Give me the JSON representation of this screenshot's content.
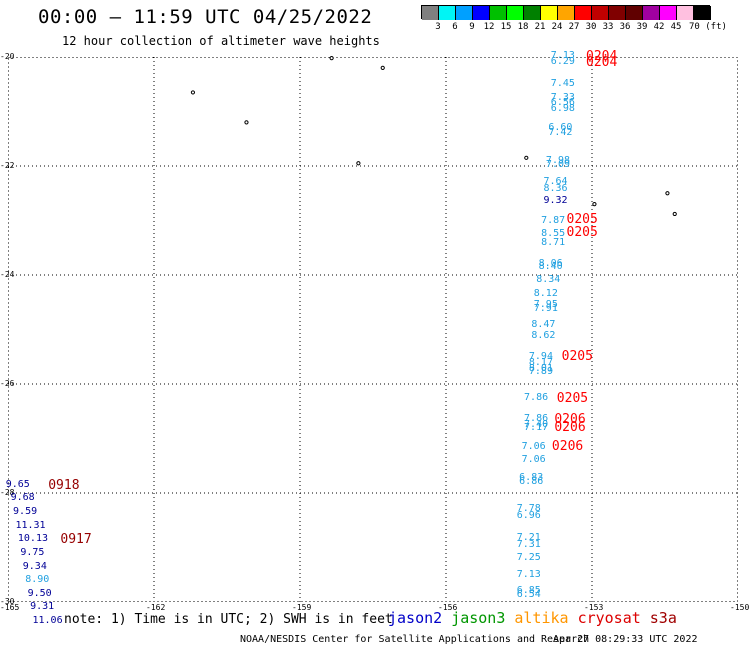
{
  "header": {
    "title": "00:00 – 11:59 UTC 04/25/2022",
    "subtitle": "12 hour collection of altimeter wave heights"
  },
  "colorbar": {
    "colors": [
      "#808080",
      "#00f5f5",
      "#00a0ff",
      "#0000ff",
      "#00c000",
      "#00ff00",
      "#008000",
      "#ffff00",
      "#ffa500",
      "#ff0000",
      "#c00000",
      "#800000",
      "#600000",
      "#a000a0",
      "#ff00ff",
      "#ffc0e0",
      "#000000"
    ],
    "labels": [
      "3",
      "6",
      "9",
      "12",
      "15",
      "18",
      "21",
      "24",
      "27",
      "30",
      "33",
      "36",
      "39",
      "42",
      "45",
      "70 (ft)"
    ]
  },
  "map": {
    "lat_ticks": [
      "-20",
      "-22",
      "-24",
      "-26",
      "-28",
      "-30"
    ],
    "lon_ticks": [
      "-165",
      "-162",
      "-159",
      "-156",
      "-153",
      "-150"
    ],
    "lon_range": [
      -165,
      -150
    ],
    "lat_range": [
      -30,
      -20
    ],
    "grid": true
  },
  "series_colors": {
    "jason2": "#0000c8",
    "jason3": "#009600",
    "altika": "#ff9600",
    "cryosat": "#dc0000",
    "s3a": "#a00000",
    "cyan": "#20a0e0",
    "navy": "#000096",
    "red": "#ff0000",
    "darkred": "#960000"
  },
  "observations": [
    {
      "lon": -153.6,
      "lat": -19.98,
      "value": "7.13",
      "color": "cyan"
    },
    {
      "lon": -153.6,
      "lat": -20.1,
      "value": "6.29",
      "color": "cyan"
    },
    {
      "lon": -153.6,
      "lat": -20.5,
      "value": "7.45",
      "color": "cyan"
    },
    {
      "lon": -153.6,
      "lat": -20.75,
      "value": "7.33",
      "color": "cyan"
    },
    {
      "lon": -153.6,
      "lat": -20.85,
      "value": "6.56",
      "color": "cyan"
    },
    {
      "lon": -153.6,
      "lat": -20.95,
      "value": "6.98",
      "color": "cyan"
    },
    {
      "lon": -153.65,
      "lat": -21.3,
      "value": "6.60",
      "color": "cyan"
    },
    {
      "lon": -153.65,
      "lat": -21.4,
      "value": "7.42",
      "color": "cyan"
    },
    {
      "lon": -153.7,
      "lat": -21.9,
      "value": "7.98",
      "color": "cyan"
    },
    {
      "lon": -153.7,
      "lat": -21.98,
      "value": "7.09",
      "color": "cyan"
    },
    {
      "lon": -153.75,
      "lat": -22.3,
      "value": "7.64",
      "color": "cyan"
    },
    {
      "lon": -153.75,
      "lat": -22.42,
      "value": "8.36",
      "color": "cyan"
    },
    {
      "lon": -153.75,
      "lat": -22.65,
      "value": "9.32",
      "color": "navy"
    },
    {
      "lon": -153.8,
      "lat": -23.0,
      "value": "7.87",
      "color": "cyan"
    },
    {
      "lon": -153.8,
      "lat": -23.25,
      "value": "8.55",
      "color": "cyan"
    },
    {
      "lon": -153.8,
      "lat": -23.42,
      "value": "8.71",
      "color": "cyan"
    },
    {
      "lon": -153.85,
      "lat": -23.8,
      "value": "8.06",
      "color": "cyan"
    },
    {
      "lon": -153.85,
      "lat": -23.85,
      "value": "8.40",
      "color": "cyan"
    },
    {
      "lon": -153.9,
      "lat": -24.1,
      "value": "8.34",
      "color": "cyan"
    },
    {
      "lon": -153.95,
      "lat": -24.35,
      "value": "8.12",
      "color": "cyan"
    },
    {
      "lon": -153.95,
      "lat": -24.55,
      "value": "7.95",
      "color": "cyan"
    },
    {
      "lon": -153.95,
      "lat": -24.62,
      "value": "7.91",
      "color": "cyan"
    },
    {
      "lon": -154.0,
      "lat": -24.92,
      "value": "8.47",
      "color": "cyan"
    },
    {
      "lon": -154.0,
      "lat": -25.12,
      "value": "8.62",
      "color": "cyan"
    },
    {
      "lon": -154.05,
      "lat": -25.5,
      "value": "7.94",
      "color": "cyan"
    },
    {
      "lon": -154.05,
      "lat": -25.62,
      "value": "8.17",
      "color": "cyan"
    },
    {
      "lon": -154.05,
      "lat": -25.72,
      "value": "8.01",
      "color": "cyan"
    },
    {
      "lon": -154.05,
      "lat": -25.78,
      "value": "7.89",
      "color": "cyan"
    },
    {
      "lon": -154.15,
      "lat": -26.25,
      "value": "7.86",
      "color": "cyan"
    },
    {
      "lon": -154.15,
      "lat": -26.65,
      "value": "7.86",
      "color": "cyan"
    },
    {
      "lon": -154.15,
      "lat": -26.75,
      "value": "7.40",
      "color": "cyan"
    },
    {
      "lon": -154.15,
      "lat": -26.8,
      "value": "7.17",
      "color": "cyan"
    },
    {
      "lon": -154.2,
      "lat": -27.15,
      "value": "7.06",
      "color": "cyan"
    },
    {
      "lon": -154.2,
      "lat": -27.4,
      "value": "7.06",
      "color": "cyan"
    },
    {
      "lon": -154.25,
      "lat": -27.72,
      "value": "6.83",
      "color": "cyan"
    },
    {
      "lon": -154.25,
      "lat": -27.8,
      "value": "6.86",
      "color": "cyan"
    },
    {
      "lon": -154.3,
      "lat": -28.3,
      "value": "7.78",
      "color": "cyan"
    },
    {
      "lon": -154.3,
      "lat": -28.42,
      "value": "6.96",
      "color": "cyan"
    },
    {
      "lon": -154.3,
      "lat": -28.82,
      "value": "7.21",
      "color": "cyan"
    },
    {
      "lon": -154.3,
      "lat": -28.95,
      "value": "7.31",
      "color": "cyan"
    },
    {
      "lon": -154.3,
      "lat": -29.2,
      "value": "7.25",
      "color": "cyan"
    },
    {
      "lon": -154.3,
      "lat": -29.5,
      "value": "7.13",
      "color": "cyan"
    },
    {
      "lon": -154.3,
      "lat": -29.8,
      "value": "6.85",
      "color": "cyan"
    },
    {
      "lon": -154.3,
      "lat": -29.88,
      "value": "6.54",
      "color": "cyan"
    },
    {
      "lon": -164.8,
      "lat": -27.85,
      "value": "9.65",
      "color": "navy"
    },
    {
      "lon": -164.7,
      "lat": -28.1,
      "value": "9.68",
      "color": "navy"
    },
    {
      "lon": -164.65,
      "lat": -28.35,
      "value": "9.59",
      "color": "navy"
    },
    {
      "lon": -164.6,
      "lat": -28.6,
      "value": "11.31",
      "color": "navy"
    },
    {
      "lon": -164.55,
      "lat": -28.85,
      "value": "10.13",
      "color": "navy"
    },
    {
      "lon": -164.5,
      "lat": -29.1,
      "value": "9.75",
      "color": "navy"
    },
    {
      "lon": -164.45,
      "lat": -29.35,
      "value": "9.34",
      "color": "navy"
    },
    {
      "lon": -164.4,
      "lat": -29.6,
      "value": "8.90",
      "color": "cyan"
    },
    {
      "lon": -164.35,
      "lat": -29.85,
      "value": "9.50",
      "color": "navy"
    },
    {
      "lon": -164.3,
      "lat": -30.1,
      "value": "9.31",
      "color": "navy"
    },
    {
      "lon": -164.25,
      "lat": -30.35,
      "value": "11.06",
      "color": "navy"
    }
  ],
  "pass_labels": [
    {
      "lon": -153.0,
      "lat": -19.98,
      "text": "0204",
      "color": "red"
    },
    {
      "lon": -153.0,
      "lat": -20.1,
      "text": "0204",
      "color": "red"
    },
    {
      "lon": -153.4,
      "lat": -22.98,
      "text": "0205",
      "color": "red"
    },
    {
      "lon": -153.4,
      "lat": -23.22,
      "text": "0205",
      "color": "red"
    },
    {
      "lon": -153.5,
      "lat": -25.48,
      "text": "0205",
      "color": "red"
    },
    {
      "lon": -153.6,
      "lat": -26.25,
      "text": "0205",
      "color": "red"
    },
    {
      "lon": -153.65,
      "lat": -26.64,
      "text": "0206",
      "color": "red"
    },
    {
      "lon": -153.65,
      "lat": -26.79,
      "text": "0206",
      "color": "red"
    },
    {
      "lon": -153.7,
      "lat": -27.13,
      "text": "0206",
      "color": "red"
    },
    {
      "lon": -164.05,
      "lat": -27.85,
      "text": "0918",
      "color": "darkred"
    },
    {
      "lon": -163.8,
      "lat": -28.85,
      "text": "0917",
      "color": "darkred"
    }
  ],
  "islands": [
    {
      "lon": -161.2,
      "lat": -20.65
    },
    {
      "lon": -160.1,
      "lat": -21.2
    },
    {
      "lon": -157.8,
      "lat": -21.95
    },
    {
      "lon": -158.35,
      "lat": -20.02
    },
    {
      "lon": -157.3,
      "lat": -20.2
    },
    {
      "lon": -154.35,
      "lat": -21.85
    },
    {
      "lon": -152.95,
      "lat": -22.7
    },
    {
      "lon": -151.45,
      "lat": -22.5
    },
    {
      "lon": -151.3,
      "lat": -22.88
    }
  ],
  "footer": {
    "note": "note: 1) Time is in UTC; 2) SWH is in feet",
    "legend": [
      {
        "name": "jason2",
        "color": "#0000c8"
      },
      {
        "name": "jason3",
        "color": "#009600"
      },
      {
        "name": "altika",
        "color": "#ff9600"
      },
      {
        "name": "cryosat",
        "color": "#dc0000"
      },
      {
        "name": "s3a",
        "color": "#a00000"
      }
    ],
    "credit": "NOAA/NESDIS Center for Satellite Applications and Research",
    "generated": "Apr 27 08:29:33 UTC 2022"
  }
}
